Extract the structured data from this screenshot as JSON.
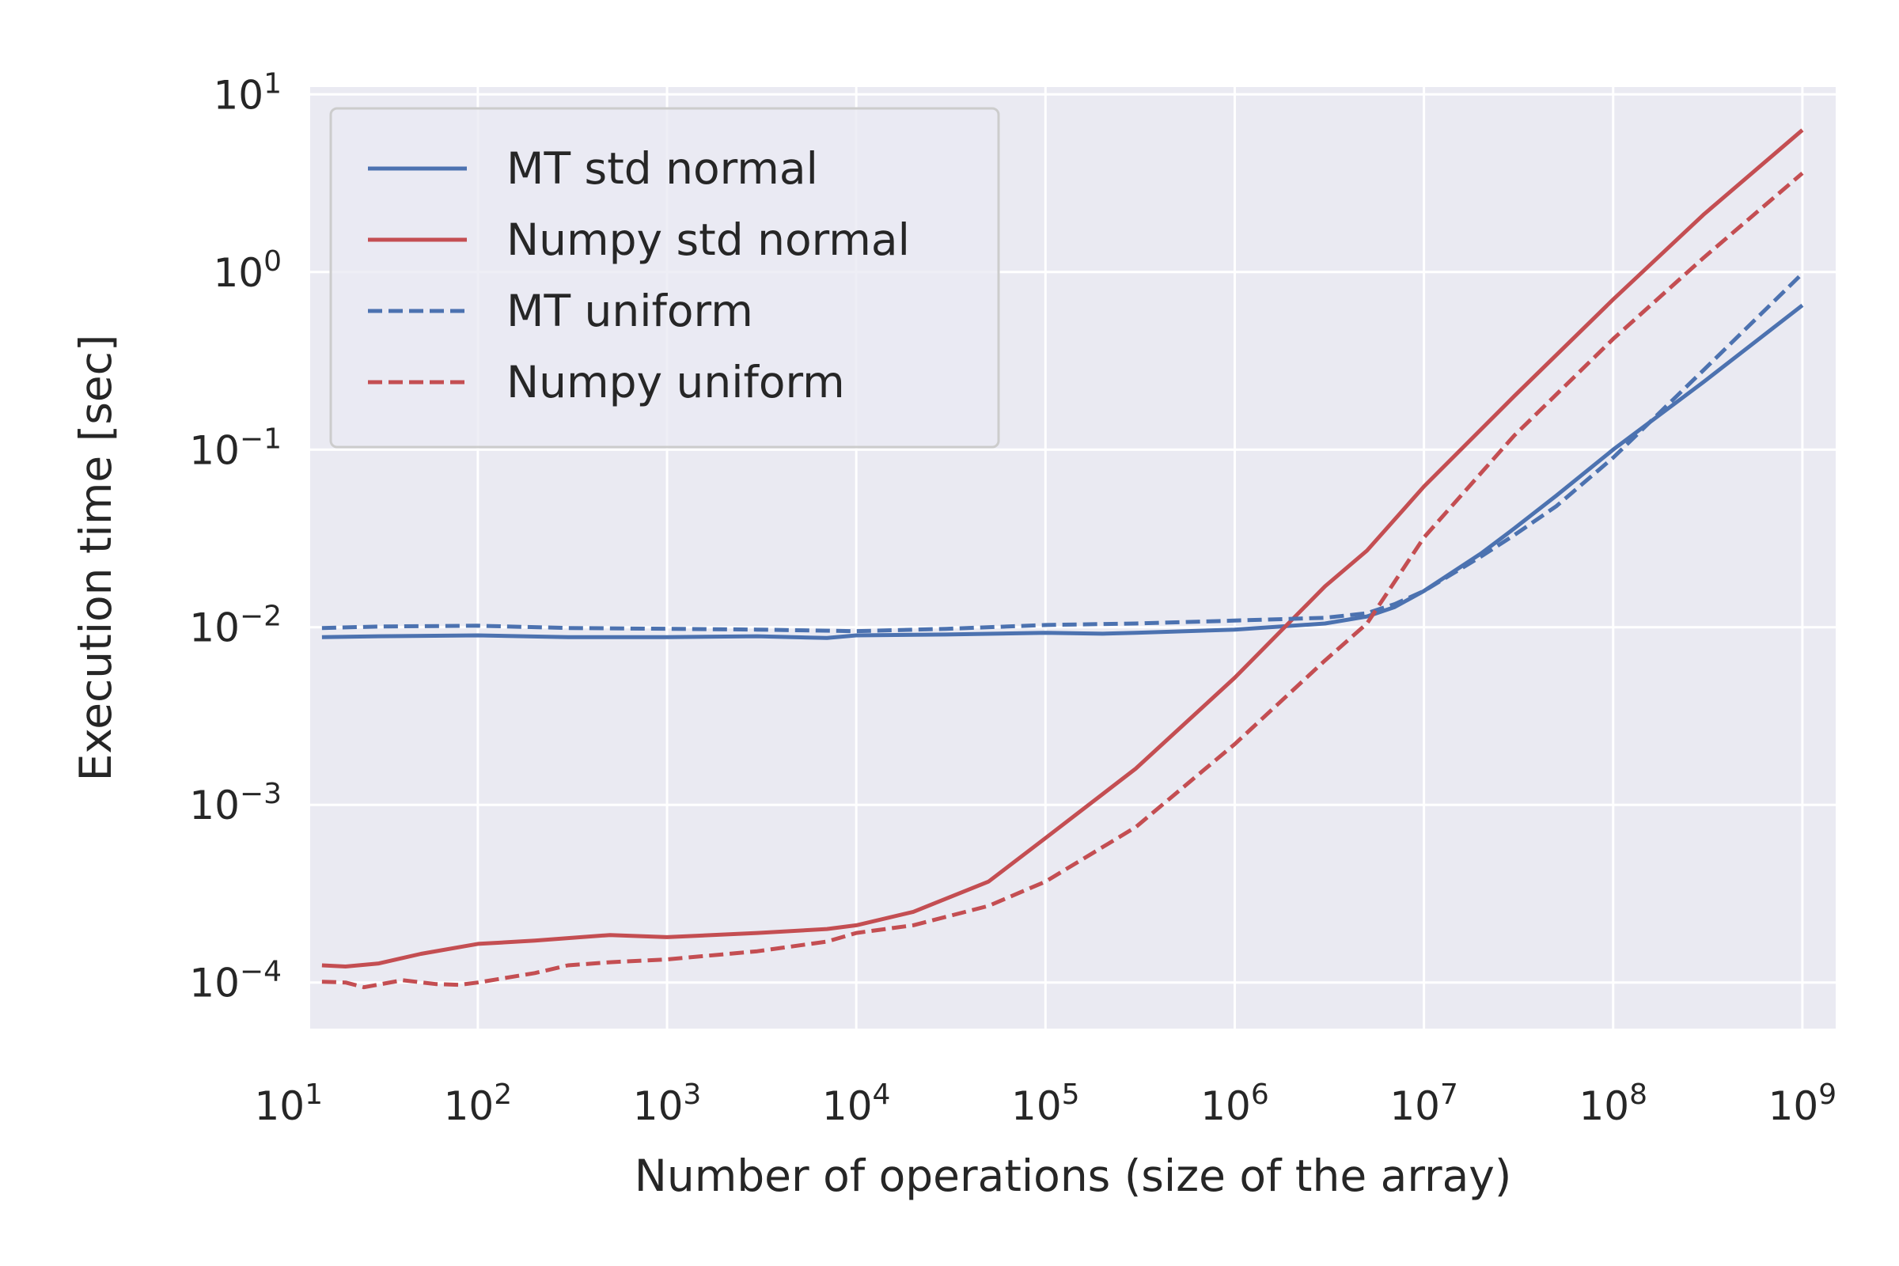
{
  "chart_data": {
    "type": "line",
    "title": "",
    "xlabel": "Number of operations (size of the array)",
    "ylabel": "Execution time [sec]",
    "xscale": "log",
    "yscale": "log",
    "xlim": [
      13,
      1500000000
    ],
    "ylim": [
      5.5e-05,
      11
    ],
    "x_ticks": [
      {
        "value": 10,
        "base": "10",
        "exp": "1"
      },
      {
        "value": 100,
        "base": "10",
        "exp": "2"
      },
      {
        "value": 1000,
        "base": "10",
        "exp": "3"
      },
      {
        "value": 10000,
        "base": "10",
        "exp": "4"
      },
      {
        "value": 100000,
        "base": "10",
        "exp": "5"
      },
      {
        "value": 1000000,
        "base": "10",
        "exp": "6"
      },
      {
        "value": 10000000,
        "base": "10",
        "exp": "7"
      },
      {
        "value": 100000000,
        "base": "10",
        "exp": "8"
      },
      {
        "value": 1000000000,
        "base": "10",
        "exp": "9"
      }
    ],
    "y_ticks": [
      {
        "value": 0.0001,
        "base": "10",
        "exp": "−4"
      },
      {
        "value": 0.001,
        "base": "10",
        "exp": "−3"
      },
      {
        "value": 0.01,
        "base": "10",
        "exp": "−2"
      },
      {
        "value": 0.1,
        "base": "10",
        "exp": "−1"
      },
      {
        "value": 1,
        "base": "10",
        "exp": "0"
      },
      {
        "value": 10,
        "base": "10",
        "exp": "1"
      }
    ],
    "grid": true,
    "legend_position": "top-left",
    "series": [
      {
        "name": "MT std normal",
        "color": "#4c72b0",
        "dash": "solid",
        "x": [
          15,
          30,
          100,
          300,
          1000,
          3000,
          7000,
          10000,
          30000,
          100000,
          200000,
          300000,
          1000000,
          3000000,
          5000000,
          7000000,
          10000000,
          20000000,
          30000000,
          50000000,
          100000000,
          300000000,
          1000000000
        ],
        "y": [
          0.0088,
          0.0089,
          0.009,
          0.0088,
          0.0088,
          0.0089,
          0.0087,
          0.009,
          0.0091,
          0.0093,
          0.0092,
          0.0093,
          0.0097,
          0.0105,
          0.0115,
          0.013,
          0.016,
          0.026,
          0.036,
          0.055,
          0.1,
          0.24,
          0.65
        ]
      },
      {
        "name": "Numpy std normal",
        "color": "#c44e52",
        "dash": "solid",
        "x": [
          15,
          20,
          30,
          50,
          100,
          200,
          500,
          1000,
          3000,
          7000,
          10000,
          20000,
          50000,
          100000,
          300000,
          1000000,
          3000000,
          5000000,
          10000000,
          30000000,
          100000000,
          300000000,
          1000000000
        ],
        "y": [
          0.000125,
          0.000123,
          0.000128,
          0.000145,
          0.000165,
          0.000172,
          0.000185,
          0.00018,
          0.00019,
          0.0002,
          0.00021,
          0.00025,
          0.00037,
          0.00065,
          0.0016,
          0.0052,
          0.017,
          0.027,
          0.062,
          0.2,
          0.7,
          2.1,
          6.3
        ]
      },
      {
        "name": "MT uniform",
        "color": "#4c72b0",
        "dash": "dashed",
        "x": [
          15,
          30,
          100,
          300,
          1000,
          3000,
          10000,
          30000,
          100000,
          300000,
          1000000,
          3000000,
          5000000,
          7000000,
          10000000,
          20000000,
          30000000,
          50000000,
          100000000,
          300000000,
          1000000000
        ],
        "y": [
          0.0099,
          0.0101,
          0.0102,
          0.0099,
          0.0098,
          0.0097,
          0.0095,
          0.0098,
          0.0103,
          0.0105,
          0.0109,
          0.0113,
          0.012,
          0.0135,
          0.016,
          0.025,
          0.033,
          0.048,
          0.09,
          0.28,
          0.98
        ]
      },
      {
        "name": "Numpy uniform",
        "color": "#c44e52",
        "dash": "dashed",
        "x": [
          15,
          20,
          25,
          40,
          60,
          80,
          100,
          200,
          300,
          500,
          1000,
          3000,
          7000,
          10000,
          20000,
          50000,
          100000,
          300000,
          1000000,
          3000000,
          5000000,
          10000000,
          30000000,
          100000000,
          300000000,
          1000000000
        ],
        "y": [
          0.000101,
          0.0001,
          9.4e-05,
          0.000103,
          9.8e-05,
          9.7e-05,
          0.0001,
          0.000113,
          0.000125,
          0.00013,
          0.000135,
          0.00015,
          0.00017,
          0.00019,
          0.00021,
          0.00027,
          0.00037,
          0.00075,
          0.0022,
          0.0065,
          0.0105,
          0.032,
          0.12,
          0.42,
          1.2,
          3.6
        ]
      }
    ]
  }
}
